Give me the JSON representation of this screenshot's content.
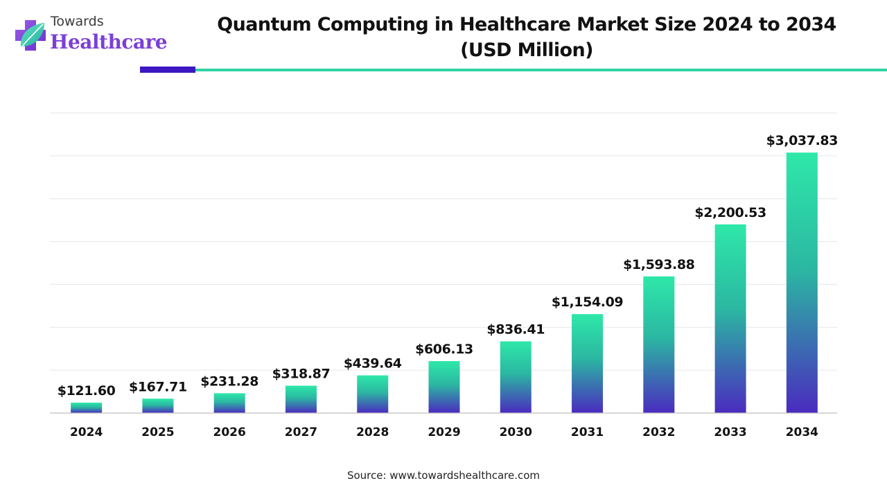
{
  "logo": {
    "line1": "Towards",
    "line2": "Healthcare",
    "icon": "medical-cross-leaf-icon"
  },
  "title": {
    "line1": "Quantum Computing in Healthcare Market Size 2024 to 2034",
    "line2": "(USD Million)"
  },
  "source": "Source: www.towardshealthcare.com",
  "colors": {
    "bar_top": "#2ee8a9",
    "bar_bottom": "#4a2bbf",
    "accent_dark": "#3d17c4",
    "accent_teal": "#2fd3a4",
    "brand_purple": "#7b3fd6"
  },
  "chart_data": {
    "type": "bar",
    "title": "Quantum Computing in Healthcare Market Size 2024 to 2034 (USD Million)",
    "xlabel": "",
    "ylabel": "",
    "grid": true,
    "legend": "none",
    "ylim": [
      0,
      3500
    ],
    "categories": [
      "2024",
      "2025",
      "2026",
      "2027",
      "2028",
      "2029",
      "2030",
      "2031",
      "2032",
      "2033",
      "2034"
    ],
    "values": [
      121.6,
      167.71,
      231.28,
      318.87,
      439.64,
      606.13,
      836.41,
      1154.09,
      1593.88,
      2200.53,
      3037.83
    ],
    "value_labels": [
      "$121.60",
      "$167.71",
      "$231.28",
      "$318.87",
      "$439.64",
      "$606.13",
      "$836.41",
      "$1,154.09",
      "$1,593.88",
      "$2,200.53",
      "$3,037.83"
    ]
  }
}
